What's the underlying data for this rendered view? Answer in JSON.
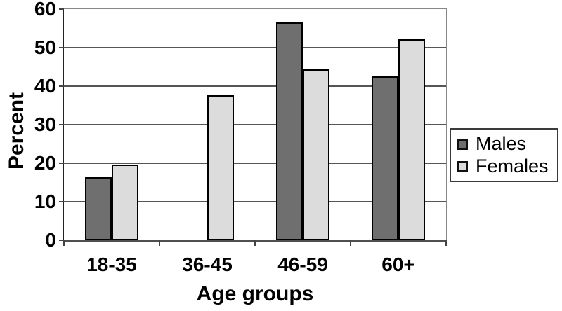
{
  "chart_data": {
    "type": "bar",
    "title": "",
    "xlabel": "Age groups",
    "ylabel": "Percent",
    "categories": [
      "18-35",
      "36-45",
      "46-59",
      "60+"
    ],
    "series": [
      {
        "name": "Males",
        "color": "#6f6f6f",
        "values": [
          16.3,
          0,
          56.6,
          42.6
        ]
      },
      {
        "name": "Females",
        "color": "#dcdcdc",
        "values": [
          19.6,
          37.7,
          44.4,
          52.1
        ]
      }
    ],
    "ylim": [
      0,
      60
    ],
    "ytick_step": 10,
    "ytick_labels": [
      "0",
      "10",
      "20",
      "30",
      "40",
      "50",
      "60"
    ],
    "grid": true,
    "legend_position": "right-outside"
  },
  "colors": {
    "bar_border": "#000000",
    "gridline": "#555555",
    "plot_frame": "#878787",
    "axis_line_y": "#222222",
    "axis_line_x": "#4f4f4f",
    "tick_mark": "#444444",
    "text": "#000000",
    "background": "#ffffff",
    "legend_border": "#3a3a3a",
    "legend_background": "#ffffff"
  }
}
